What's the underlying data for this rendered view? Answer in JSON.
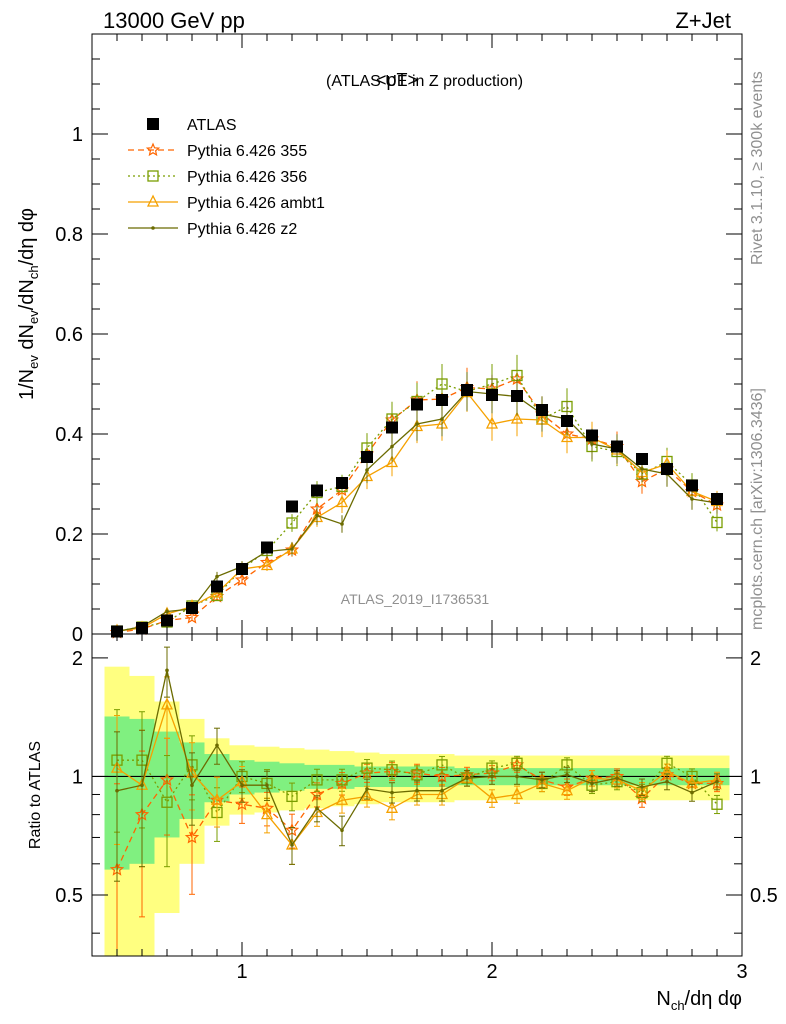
{
  "header": {
    "energy_label": "13000 GeV pp",
    "process_label": "Z+Jet"
  },
  "side_labels": {
    "rivet": "Rivet 3.1.10, ≥ 300k events",
    "mcplots": "mcplots.cern.ch [arXiv:1306.3436]"
  },
  "watermark": "ATLAS_2019_I1736531",
  "chart_data": [
    {
      "type": "scatter",
      "title": "<pT> (ATLAS UE in Z production)",
      "title_main": "<pT>",
      "title_sub": "(ATLAS UE in Z production)",
      "ylabel": "1/N_ev dN_ev/dN_ch/dη dφ",
      "xlim": [
        0.4,
        3.0
      ],
      "ylim": [
        0,
        1.2
      ],
      "yticks": [
        0,
        0.2,
        0.4,
        0.6,
        0.8,
        1
      ],
      "ytick_labels": [
        "0",
        "0.2",
        "0.4",
        "0.6",
        "0.8",
        "1"
      ],
      "legend_position": "top-left",
      "x": [
        0.5,
        0.6,
        0.7,
        0.8,
        0.9,
        1.0,
        1.1,
        1.2,
        1.3,
        1.4,
        1.5,
        1.6,
        1.7,
        1.8,
        1.9,
        2.0,
        2.1,
        2.2,
        2.3,
        2.4,
        2.5,
        2.6,
        2.7,
        2.8,
        2.9
      ],
      "series": [
        {
          "name": "ATLAS",
          "color": "#000000",
          "marker": "filled-square",
          "line": "none",
          "values": [
            0.005,
            0.012,
            0.027,
            0.052,
            0.095,
            0.13,
            0.173,
            0.255,
            0.287,
            0.302,
            0.354,
            0.413,
            0.459,
            0.468,
            0.488,
            0.478,
            0.476,
            0.448,
            0.426,
            0.397,
            0.375,
            0.35,
            0.33,
            0.297,
            0.27
          ]
        },
        {
          "name": "Pythia 6.426 355",
          "color": "#ff6600",
          "marker": "star",
          "line": "dashed",
          "values": [
            0.003,
            0.01,
            0.027,
            0.033,
            0.075,
            0.108,
            0.143,
            0.168,
            0.25,
            0.288,
            0.36,
            0.428,
            0.468,
            0.47,
            0.493,
            0.49,
            0.51,
            0.44,
            0.4,
            0.39,
            0.375,
            0.305,
            0.33,
            0.285,
            0.258
          ]
        },
        {
          "name": "Pythia 6.426 356",
          "color": "#7a9d00",
          "marker": "open-square",
          "line": "dotted",
          "values": [
            0.006,
            0.014,
            0.024,
            0.056,
            0.077,
            0.13,
            0.167,
            0.222,
            0.283,
            0.295,
            0.372,
            0.43,
            0.465,
            0.5,
            0.485,
            0.5,
            0.517,
            0.43,
            0.455,
            0.375,
            0.365,
            0.32,
            0.345,
            0.298,
            0.223
          ]
        },
        {
          "name": "Pythia 6.426 ambt1",
          "color": "#f5a100",
          "marker": "open-triangle",
          "line": "solid",
          "values": [
            0.006,
            0.012,
            0.04,
            0.055,
            0.082,
            0.13,
            0.137,
            0.17,
            0.233,
            0.263,
            0.315,
            0.343,
            0.415,
            0.42,
            0.483,
            0.42,
            0.43,
            0.428,
            0.393,
            0.393,
            0.368,
            0.323,
            0.34,
            0.285,
            0.265
          ]
        },
        {
          "name": "Pythia 6.426 z2",
          "color": "#6b6b00",
          "marker": "dot",
          "line": "solid",
          "values": [
            0.005,
            0.015,
            0.045,
            0.05,
            0.115,
            0.135,
            0.165,
            0.17,
            0.237,
            0.22,
            0.328,
            0.375,
            0.42,
            0.43,
            0.485,
            0.48,
            0.475,
            0.44,
            0.43,
            0.38,
            0.37,
            0.33,
            0.32,
            0.27,
            0.262
          ]
        }
      ]
    },
    {
      "type": "scatter",
      "ylabel": "Ratio to ATLAS",
      "xlabel": "N_ch/dη dφ",
      "xlim": [
        0.4,
        3.0
      ],
      "ylim": [
        0.35,
        2.3
      ],
      "yscale": "log",
      "yticks": [
        0.5,
        1,
        2
      ],
      "ytick_labels": [
        "0.5",
        "1",
        "2"
      ],
      "xticks": [
        1,
        2,
        3
      ],
      "xtick_labels": [
        "1",
        "2",
        "3"
      ],
      "x": [
        0.5,
        0.6,
        0.7,
        0.8,
        0.9,
        1.0,
        1.1,
        1.2,
        1.3,
        1.4,
        1.5,
        1.6,
        1.7,
        1.8,
        1.9,
        2.0,
        2.1,
        2.2,
        2.3,
        2.4,
        2.5,
        2.6,
        2.7,
        2.8,
        2.9
      ],
      "band_stat_halfwidth": [
        0.42,
        0.4,
        0.3,
        0.22,
        0.14,
        0.1,
        0.09,
        0.08,
        0.07,
        0.07,
        0.06,
        0.06,
        0.06,
        0.06,
        0.05,
        0.05,
        0.05,
        0.05,
        0.05,
        0.05,
        0.05,
        0.05,
        0.05,
        0.05,
        0.05
      ],
      "band_total_halfwidth": [
        0.9,
        0.8,
        0.55,
        0.4,
        0.25,
        0.2,
        0.19,
        0.18,
        0.17,
        0.16,
        0.15,
        0.14,
        0.14,
        0.14,
        0.13,
        0.13,
        0.13,
        0.13,
        0.13,
        0.13,
        0.13,
        0.13,
        0.13,
        0.13,
        0.13
      ],
      "series": [
        {
          "name": "Pythia 6.426 355",
          "color": "#ff6600",
          "values": [
            0.58,
            0.8,
            0.98,
            0.7,
            0.87,
            0.85,
            0.83,
            0.73,
            0.9,
            0.96,
            1.02,
            1.03,
            1.02,
            1.0,
            1.01,
            1.02,
            1.07,
            0.98,
            0.94,
            0.99,
            1.0,
            0.88,
            1.01,
            0.96,
            0.96
          ]
        },
        {
          "name": "Pythia 6.426 356",
          "color": "#7a9d00",
          "values": [
            1.1,
            1.1,
            0.86,
            1.07,
            0.81,
            1.0,
            0.96,
            0.89,
            0.98,
            0.98,
            1.05,
            1.04,
            1.01,
            1.07,
            0.99,
            1.05,
            1.08,
            0.96,
            1.07,
            0.95,
            0.97,
            0.91,
            1.08,
            1.0,
            0.85
          ]
        },
        {
          "name": "Pythia 6.426 ambt1",
          "color": "#f5a100",
          "values": [
            1.05,
            0.95,
            1.52,
            1.02,
            0.87,
            0.97,
            0.8,
            0.67,
            0.81,
            0.87,
            0.89,
            0.83,
            0.9,
            0.9,
            0.99,
            0.88,
            0.9,
            0.96,
            0.92,
            0.99,
            0.98,
            0.92,
            1.03,
            0.96,
            0.98
          ]
        },
        {
          "name": "Pythia 6.426 z2",
          "color": "#6b6b00",
          "values": [
            0.92,
            0.95,
            1.86,
            0.95,
            1.2,
            0.95,
            0.95,
            0.67,
            0.83,
            0.73,
            0.93,
            0.91,
            0.92,
            0.92,
            0.99,
            1.0,
            1.0,
            0.98,
            1.01,
            0.96,
            0.99,
            0.94,
            0.97,
            0.91,
            0.97
          ]
        }
      ]
    }
  ]
}
